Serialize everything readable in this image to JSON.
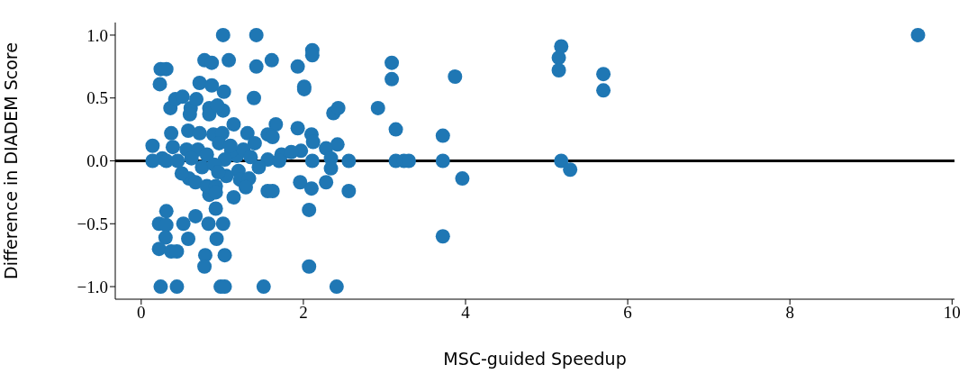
{
  "chart_data": {
    "type": "scatter",
    "xlabel": "MSC-guided Speedup",
    "ylabel": "Difference in DIADEM Score",
    "x": [
      1.01,
      1.42,
      9.58,
      0.24,
      0.31,
      0.78,
      0.87,
      1.08,
      1.42,
      1.61,
      1.93,
      2.11,
      2.11,
      2.01,
      2.01,
      0.23,
      0.72,
      0.87,
      1.02,
      1.39,
      0.36,
      0.42,
      0.51,
      0.61,
      0.68,
      0.6,
      0.84,
      0.84,
      1.01,
      0.94,
      2.37,
      2.43,
      2.92,
      3.09,
      3.09,
      3.14,
      3.14,
      3.24,
      3.3,
      3.72,
      3.72,
      3.72,
      3.87,
      3.96,
      5.18,
      5.15,
      5.15,
      5.18,
      5.29,
      5.7,
      5.7,
      2.56,
      2.56,
      0.14,
      0.37,
      0.58,
      0.72,
      1.14,
      1.66,
      1.93,
      2.1,
      2.42,
      0.39,
      0.56,
      0.7,
      0.89,
      1.0,
      0.96,
      1.31,
      1.56,
      1.62,
      1.4,
      1.73,
      1.97,
      2.12,
      2.28,
      2.34,
      1.56,
      1.18,
      0.81,
      1.11,
      0.26,
      0.62,
      1.03,
      1.26,
      0.14,
      0.31,
      0.45,
      0.75,
      0.9,
      1.2,
      1.45,
      0.31,
      0.22,
      0.31,
      0.3,
      0.22,
      0.37,
      0.44,
      0.52,
      0.67,
      0.58,
      0.83,
      1.01,
      0.93,
      0.79,
      0.78,
      1.03,
      0.92,
      0.84,
      1.14,
      0.24,
      0.44,
      0.98,
      1.03,
      1.51,
      2.41,
      0.59,
      0.67,
      0.81,
      0.92,
      0.92,
      1.22,
      1.33,
      1.29,
      1.56,
      1.62,
      1.96,
      2.1,
      2.28,
      2.07,
      2.07,
      2.34,
      2.11,
      0.5,
      1.05,
      1.35,
      1.7,
      1.85,
      0.95,
      1.1
    ],
    "values": [
      1.0,
      1.0,
      1.0,
      0.73,
      0.73,
      0.8,
      0.78,
      0.8,
      0.75,
      0.8,
      0.75,
      0.88,
      0.84,
      0.59,
      0.57,
      0.61,
      0.62,
      0.6,
      0.55,
      0.5,
      0.42,
      0.49,
      0.51,
      0.42,
      0.49,
      0.37,
      0.42,
      0.37,
      0.4,
      0.44,
      0.38,
      0.42,
      0.42,
      0.78,
      0.65,
      0.25,
      0.0,
      0.0,
      0.0,
      0.2,
      0.0,
      -0.6,
      0.67,
      -0.14,
      0.91,
      0.82,
      0.72,
      0.0,
      -0.07,
      0.69,
      0.56,
      0.0,
      -0.24,
      0.12,
      0.22,
      0.24,
      0.22,
      0.29,
      0.29,
      0.26,
      0.21,
      0.13,
      0.11,
      0.09,
      0.09,
      0.21,
      0.22,
      0.14,
      0.22,
      0.21,
      0.19,
      0.14,
      0.05,
      0.08,
      0.15,
      0.1,
      0.02,
      0.01,
      0.04,
      0.05,
      0.08,
      0.02,
      0.02,
      0.01,
      0.09,
      0.0,
      0.0,
      0.0,
      -0.05,
      -0.03,
      -0.08,
      -0.05,
      -0.4,
      -0.5,
      -0.51,
      -0.61,
      -0.7,
      -0.72,
      -0.72,
      -0.5,
      -0.44,
      -0.62,
      -0.5,
      -0.5,
      -0.62,
      -0.75,
      -0.84,
      -0.75,
      -0.38,
      -0.27,
      -0.29,
      -1.0,
      -1.0,
      -1.0,
      -1.0,
      -1.0,
      -1.0,
      -0.14,
      -0.17,
      -0.2,
      -0.2,
      -0.25,
      -0.15,
      -0.14,
      -0.21,
      -0.24,
      -0.24,
      -0.17,
      -0.22,
      -0.17,
      -0.39,
      -0.84,
      -0.06,
      0.0,
      -0.1,
      -0.12,
      0.03,
      0.0,
      0.07,
      -0.09,
      0.12
    ],
    "color": "#1f77b4",
    "marker": "circle",
    "grid": false,
    "legend": false,
    "xlim": [
      -0.32,
      10.03
    ],
    "ylim": [
      -1.1,
      1.1
    ],
    "xticks": [
      0,
      2,
      4,
      6,
      8,
      10
    ],
    "yticks": [
      {
        "value": -1,
        "label": "−1.0"
      },
      {
        "value": -0.5,
        "label": "−0.5"
      },
      {
        "value": 0,
        "label": "0.0"
      },
      {
        "value": 0.5,
        "label": "0.5"
      },
      {
        "value": 1,
        "label": "1.0"
      }
    ],
    "ref_lines": [
      {
        "axis": "y",
        "value": 0,
        "color": "#000000"
      }
    ]
  }
}
